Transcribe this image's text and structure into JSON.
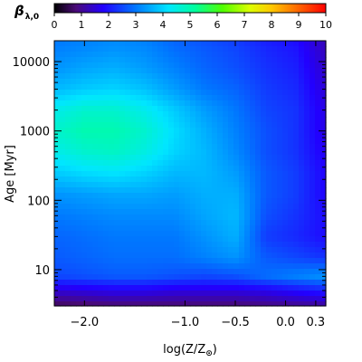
{
  "chart_data": {
    "type": "heatmap",
    "colorbar": {
      "label": "β",
      "label_subscript": "λ,0",
      "range": [
        0,
        10
      ],
      "ticks": [
        0,
        1,
        2,
        3,
        4,
        5,
        6,
        7,
        8,
        9,
        10
      ],
      "tick_labels": [
        "0",
        "1",
        "2",
        "3",
        "4",
        "5",
        "6",
        "7",
        "8",
        "9",
        "10"
      ],
      "colormap": "rainbow (black-purple-blue-cyan-green-yellow-orange-red)",
      "placement": "top"
    },
    "x_axis": {
      "label": "log(Z/Z",
      "label_symbol": "⊙",
      "label_close": ")",
      "range": [
        -2.3,
        0.4
      ],
      "ticks": [
        -2.0,
        -1.0,
        -0.5,
        0.0,
        0.3
      ],
      "tick_labels": [
        "−2.0",
        "−1.0",
        "−0.5",
        "0.0",
        "0.3"
      ]
    },
    "y_axis": {
      "label": "Age [Myr]",
      "scale": "log",
      "range": [
        3,
        20000
      ],
      "ticks": [
        10,
        100,
        1000,
        10000
      ],
      "tick_labels": [
        "10",
        "100",
        "1000",
        "10000"
      ]
    },
    "x_values": [
      -2.3,
      -2.0,
      -1.7,
      -1.4,
      -1.1,
      -0.8,
      -0.5,
      -0.2,
      0.1,
      0.4
    ],
    "y_values": [
      3,
      5,
      8,
      15,
      30,
      60,
      120,
      250,
      500,
      1000,
      2000,
      4000,
      8000,
      15000,
      20000
    ],
    "z": [
      [
        0.6,
        0.7,
        0.8,
        0.8,
        0.8,
        0.8,
        0.8,
        0.9,
        1.0,
        1.1
      ],
      [
        1.5,
        1.6,
        1.7,
        1.7,
        1.6,
        1.6,
        1.6,
        1.7,
        1.9,
        2.1
      ],
      [
        2.5,
        2.6,
        2.7,
        2.7,
        2.6,
        2.5,
        2.6,
        2.9,
        3.1,
        3.3
      ],
      [
        2.7,
        2.8,
        2.9,
        2.9,
        2.9,
        3.1,
        3.3,
        2.7,
        2.5,
        2.3
      ],
      [
        2.8,
        2.9,
        3.0,
        3.0,
        3.0,
        3.3,
        3.6,
        2.4,
        2.2,
        1.9
      ],
      [
        3.0,
        3.1,
        3.2,
        3.2,
        3.2,
        3.5,
        3.7,
        2.6,
        2.3,
        1.9
      ],
      [
        3.3,
        3.4,
        3.5,
        3.5,
        3.4,
        3.6,
        3.6,
        2.7,
        2.4,
        1.8
      ],
      [
        3.9,
        4.1,
        4.2,
        4.0,
        3.7,
        3.7,
        3.4,
        2.7,
        2.4,
        1.8
      ],
      [
        4.4,
        4.7,
        4.8,
        4.5,
        4.0,
        3.7,
        3.2,
        2.6,
        2.3,
        1.7
      ],
      [
        4.7,
        5.0,
        5.0,
        4.7,
        4.1,
        3.6,
        3.1,
        2.6,
        2.3,
        1.6
      ],
      [
        4.4,
        4.7,
        4.7,
        4.4,
        3.9,
        3.4,
        3.0,
        2.5,
        2.3,
        1.6
      ],
      [
        3.7,
        3.9,
        4.0,
        3.8,
        3.4,
        3.0,
        2.8,
        2.4,
        2.2,
        1.5
      ],
      [
        3.3,
        3.5,
        3.6,
        3.4,
        3.1,
        2.8,
        2.6,
        2.3,
        2.1,
        1.4
      ],
      [
        3.1,
        3.2,
        3.3,
        3.2,
        2.9,
        2.7,
        2.5,
        2.2,
        2.0,
        1.3
      ],
      [
        3.0,
        3.1,
        3.2,
        3.1,
        2.8,
        2.6,
        2.4,
        2.1,
        1.9,
        1.3
      ]
    ]
  }
}
